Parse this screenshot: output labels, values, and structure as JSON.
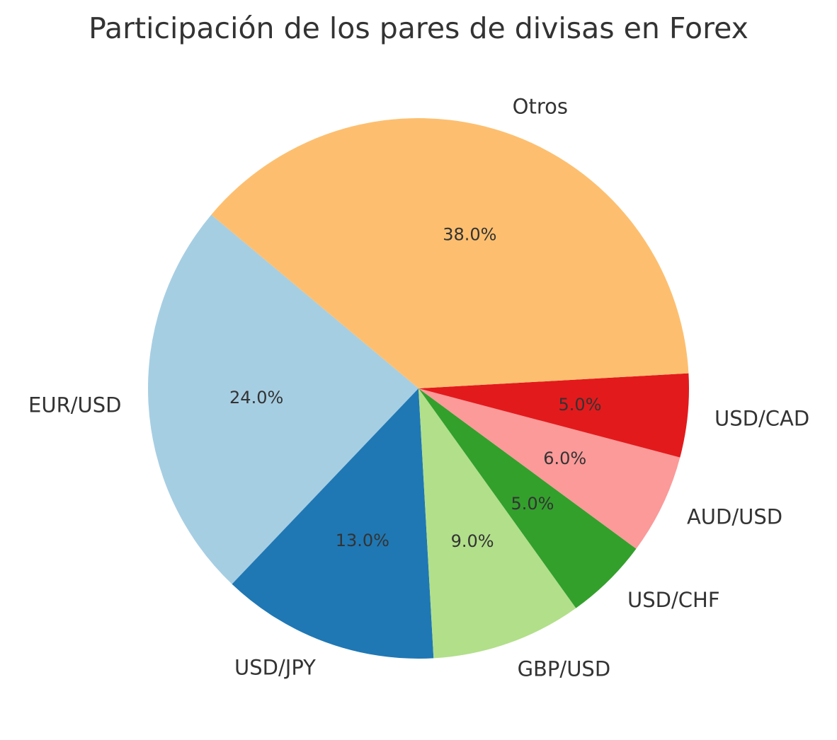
{
  "chart_data": {
    "type": "pie",
    "title": "Participación de los pares de divisas en Forex",
    "start_angle_deg": 140,
    "direction": "counterclockwise",
    "slices": [
      {
        "label": "EUR/USD",
        "value": 24.0,
        "pct_label": "24.0%",
        "color": "#a6cee3"
      },
      {
        "label": "USD/JPY",
        "value": 13.0,
        "pct_label": "13.0%",
        "color": "#1f78b4"
      },
      {
        "label": "GBP/USD",
        "value": 9.0,
        "pct_label": "9.0%",
        "color": "#b2df8a"
      },
      {
        "label": "USD/CHF",
        "value": 5.0,
        "pct_label": "5.0%",
        "color": "#33a02c"
      },
      {
        "label": "AUD/USD",
        "value": 6.0,
        "pct_label": "6.0%",
        "color": "#fb9a99"
      },
      {
        "label": "USD/CAD",
        "value": 5.0,
        "pct_label": "5.0%",
        "color": "#e31a1c"
      },
      {
        "label": "Otros",
        "value": 38.0,
        "pct_label": "38.0%",
        "color": "#fdbf6f"
      }
    ]
  }
}
